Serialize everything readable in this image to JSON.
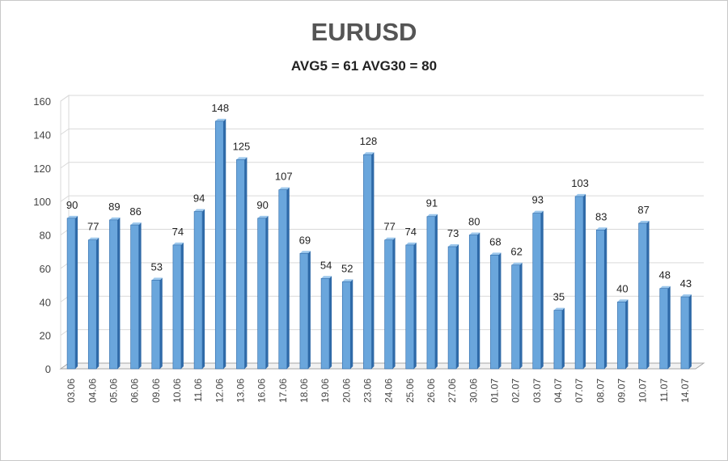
{
  "chart_data": {
    "type": "bar",
    "title": "EURUSD",
    "subtitle": "AVG5 = 61 AVG30 = 80",
    "xlabel": "",
    "ylabel": "",
    "ylim": [
      0,
      160
    ],
    "yticks": [
      0,
      20,
      40,
      60,
      80,
      100,
      120,
      140,
      160
    ],
    "grid": true,
    "legend": "none",
    "categories": [
      "03.06",
      "04.06",
      "05.06",
      "06.06",
      "09.06",
      "10.06",
      "11.06",
      "12.06",
      "13.06",
      "16.06",
      "17.06",
      "18.06",
      "19.06",
      "20.06",
      "23.06",
      "24.06",
      "25.06",
      "26.06",
      "27.06",
      "30.06",
      "01.07",
      "02.07",
      "03.07",
      "04.07",
      "07.07",
      "08.07",
      "09.07",
      "10.07",
      "11.07",
      "14.07"
    ],
    "values": [
      90,
      77,
      89,
      86,
      53,
      74,
      94,
      148,
      125,
      90,
      107,
      69,
      54,
      52,
      128,
      77,
      74,
      91,
      73,
      80,
      68,
      62,
      93,
      35,
      103,
      83,
      40,
      87,
      48,
      43
    ],
    "colors": {
      "bar_face": "#6aa6dc",
      "bar_side": "#2f6aa8",
      "bar_top": "#9cc7ec",
      "grid": "#d9d9d9",
      "axis": "#a6a6a6"
    }
  }
}
